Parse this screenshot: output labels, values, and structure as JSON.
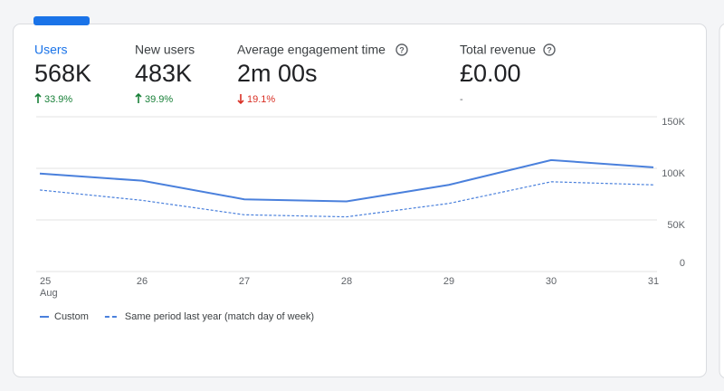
{
  "metrics": [
    {
      "label": "Users",
      "value": "568K",
      "change": "33.9%",
      "direction": "up"
    },
    {
      "label": "New users",
      "value": "483K",
      "change": "39.9%",
      "direction": "up"
    },
    {
      "label": "Average engagement time",
      "value": "2m 00s",
      "change": "19.1%",
      "direction": "down"
    },
    {
      "label": "Total revenue",
      "value": "£0.00",
      "change": "-"
    }
  ],
  "chart_data": {
    "type": "line",
    "categories": [
      "25",
      "26",
      "27",
      "28",
      "29",
      "30",
      "31"
    ],
    "month": "Aug",
    "series": [
      {
        "name": "Custom",
        "color": "#4a80dc",
        "style": "solid",
        "values": [
          95000,
          88000,
          70000,
          68000,
          84000,
          108000,
          101000
        ]
      },
      {
        "name": "Same period last year (match day of week)",
        "color": "#4a80dc",
        "style": "dashed",
        "values": [
          79000,
          69000,
          55000,
          53000,
          66000,
          87000,
          84000
        ]
      }
    ],
    "ylim": [
      0,
      150000
    ],
    "yticks": [
      {
        "value": 0,
        "label": "0"
      },
      {
        "value": 50000,
        "label": "50K"
      },
      {
        "value": 100000,
        "label": "100K"
      },
      {
        "value": 150000,
        "label": "150K"
      }
    ],
    "grid": true
  }
}
